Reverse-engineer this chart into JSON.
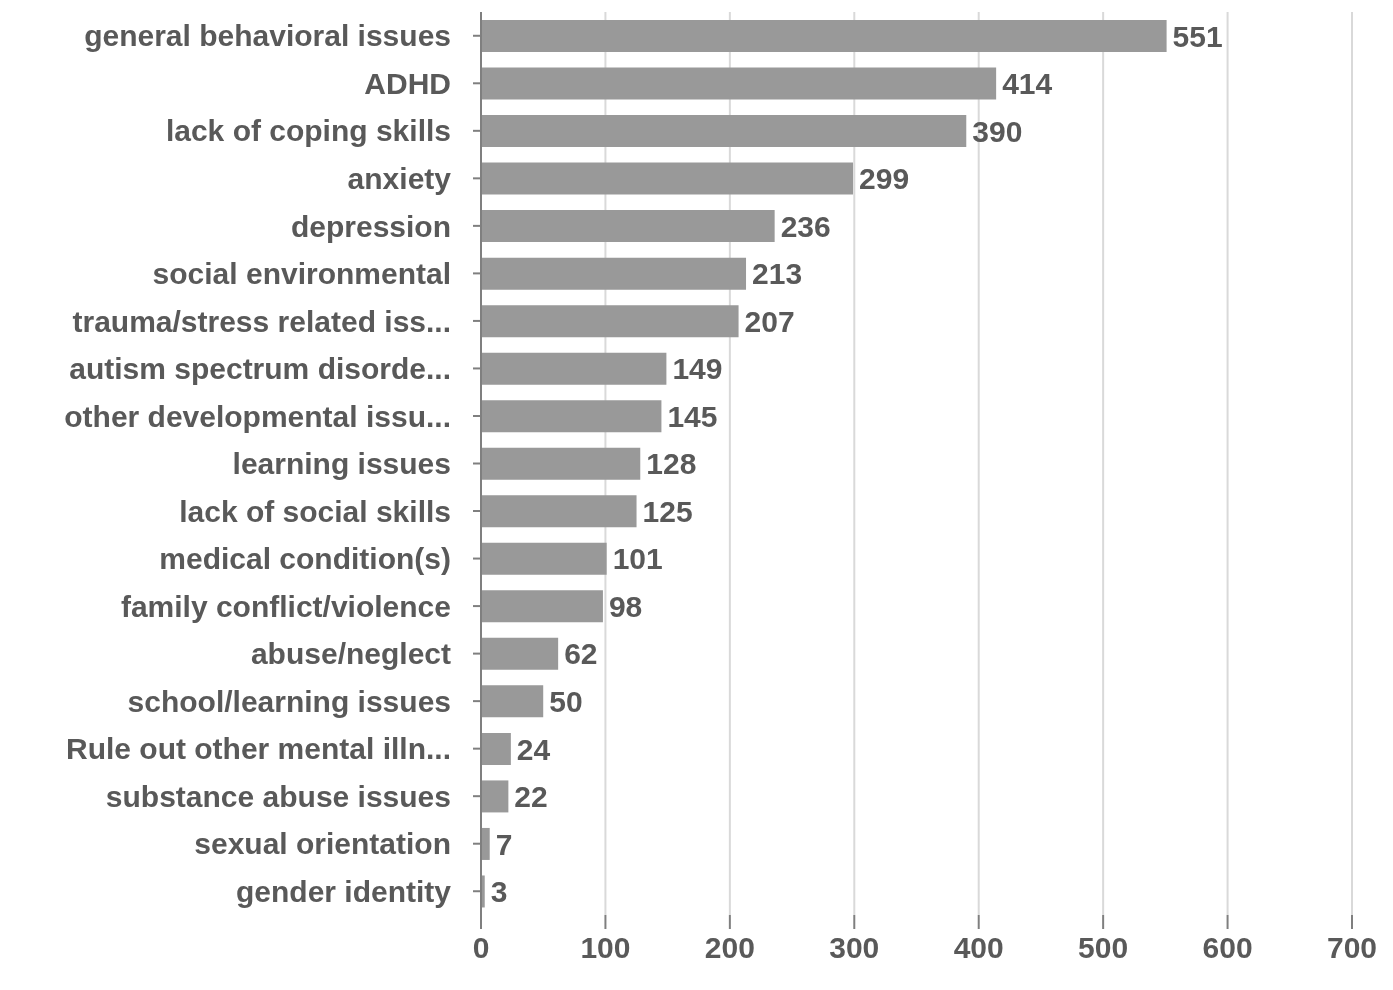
{
  "chart_data": {
    "type": "bar",
    "orientation": "horizontal",
    "categories": [
      "general behavioral issues",
      "ADHD",
      "lack of coping skills",
      "anxiety",
      "depression",
      "social environmental",
      "trauma/stress related iss...",
      "autism spectrum disorde...",
      "other developmental issu...",
      "learning issues",
      "lack of social skills",
      "medical condition(s)",
      "family conflict/violence",
      "abuse/neglect",
      "school/learning issues",
      "Rule out other mental illn...",
      "substance abuse issues",
      "sexual orientation",
      "gender identity"
    ],
    "values": [
      551,
      414,
      390,
      299,
      236,
      213,
      207,
      149,
      145,
      128,
      125,
      101,
      98,
      62,
      50,
      24,
      22,
      7,
      3
    ],
    "color": "#999999",
    "xlim": [
      0,
      700
    ],
    "xticks": [
      0,
      100,
      200,
      300,
      400,
      500,
      600,
      700
    ],
    "grid": "x",
    "data_labels": true
  }
}
